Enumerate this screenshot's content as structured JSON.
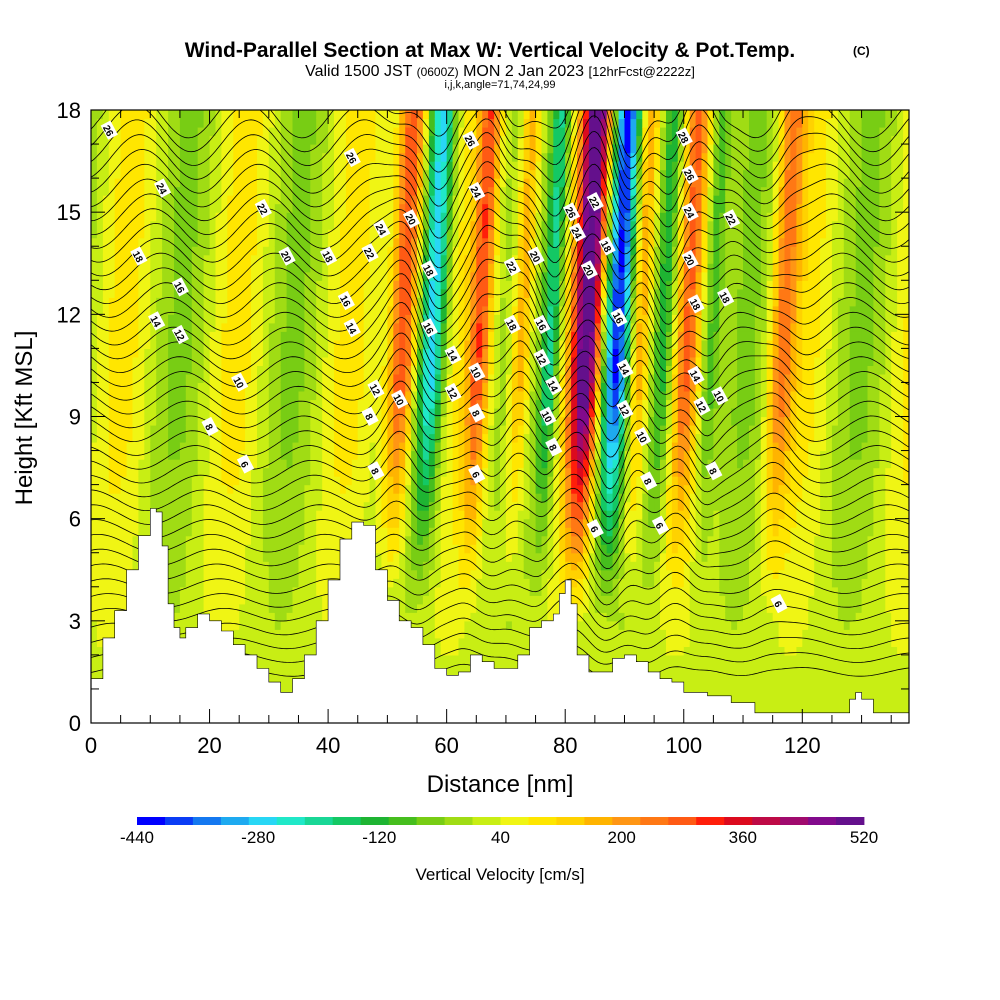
{
  "title": {
    "main": "Wind-Parallel Section at Max W: Vertical Velocity & Pot.Temp.",
    "main_mark": "(C)",
    "valid_prefix": "Valid 1500 JST",
    "valid_utc": "(0600Z)",
    "valid_day": "MON 2 Jan 2023",
    "valid_fcst": "[12hrFcst@2222z]",
    "ijk": "i,j,k,angle=71,74,24,99"
  },
  "chart_data": {
    "type": "heatmap",
    "title": "Wind-Parallel Section at Max W: Vertical Velocity & Pot.Temp.",
    "xlabel": "Distance [nm]",
    "ylabel": "Height [Kft MSL]",
    "xlim": [
      0,
      138
    ],
    "ylim": [
      0,
      18
    ],
    "x_ticks": [
      "0",
      "20",
      "40",
      "60",
      "80",
      "100",
      "120"
    ],
    "y_ticks": [
      "0",
      "3",
      "6",
      "9",
      "12",
      "15",
      "18"
    ],
    "colorbar": {
      "label": "Vertical Velocity [cm/s]",
      "tick_labels": [
        "-440",
        "-280",
        "-120",
        "40",
        "200",
        "360",
        "520"
      ],
      "colors": [
        "#0000ff",
        "#0a3cf5",
        "#1478f0",
        "#1eaaf0",
        "#28d7f5",
        "#20e8c8",
        "#19d796",
        "#14c864",
        "#1eb432",
        "#46be1e",
        "#78cd14",
        "#a0dc14",
        "#c8ee14",
        "#f0f514",
        "#ffe600",
        "#ffd200",
        "#ffb400",
        "#ff9614",
        "#ff7814",
        "#ff5a14",
        "#ff1e0a",
        "#dc0a1e",
        "#be0a46",
        "#a00a6e",
        "#820a8c",
        "#64108c"
      ]
    },
    "w_features": [
      {
        "x": 52,
        "w": 340,
        "width": 2.4
      },
      {
        "x": 57,
        "w": -290,
        "width": 2.2
      },
      {
        "x": 83,
        "w": 470,
        "width": 2.4
      },
      {
        "x": 88,
        "w": -400,
        "width": 2.2
      },
      {
        "x": 65,
        "w": 230,
        "width": 1.8
      },
      {
        "x": 72,
        "w": 210,
        "width": 1.8
      },
      {
        "x": 77,
        "w": -220,
        "width": 1.6
      },
      {
        "x": 92,
        "w": 220,
        "width": 1.8
      },
      {
        "x": 96,
        "w": -160,
        "width": 1.6
      },
      {
        "x": 100,
        "w": 180,
        "width": 1.8
      },
      {
        "x": 104,
        "w": -140,
        "width": 1.6
      },
      {
        "x": 116,
        "w": 200,
        "width": 2.2
      }
    ],
    "terrain": [
      [
        0,
        1.3
      ],
      [
        2,
        2.5
      ],
      [
        4,
        3.3
      ],
      [
        6,
        4.5
      ],
      [
        8,
        5.5
      ],
      [
        10,
        6.3
      ],
      [
        11,
        6.2
      ],
      [
        12,
        5.2
      ],
      [
        13,
        3.5
      ],
      [
        14,
        2.8
      ],
      [
        15,
        2.5
      ],
      [
        16,
        2.8
      ],
      [
        18,
        3.2
      ],
      [
        20,
        3.0
      ],
      [
        22,
        2.7
      ],
      [
        24,
        2.3
      ],
      [
        26,
        2.0
      ],
      [
        28,
        1.6
      ],
      [
        30,
        1.2
      ],
      [
        32,
        0.9
      ],
      [
        34,
        1.3
      ],
      [
        36,
        2.0
      ],
      [
        38,
        3.0
      ],
      [
        40,
        4.2
      ],
      [
        42,
        5.4
      ],
      [
        44,
        5.9
      ],
      [
        46,
        5.8
      ],
      [
        48,
        4.5
      ],
      [
        50,
        3.6
      ],
      [
        52,
        3.0
      ],
      [
        54,
        2.8
      ],
      [
        56,
        2.3
      ],
      [
        58,
        1.6
      ],
      [
        60,
        1.4
      ],
      [
        62,
        1.5
      ],
      [
        64,
        2.0
      ],
      [
        66,
        1.8
      ],
      [
        68,
        1.6
      ],
      [
        70,
        1.6
      ],
      [
        72,
        2.0
      ],
      [
        74,
        2.8
      ],
      [
        76,
        3.0
      ],
      [
        78,
        3.2
      ],
      [
        79,
        3.8
      ],
      [
        80,
        4.2
      ],
      [
        81,
        3.5
      ],
      [
        82,
        2.0
      ],
      [
        84,
        1.5
      ],
      [
        86,
        1.5
      ],
      [
        88,
        1.9
      ],
      [
        90,
        2.0
      ],
      [
        92,
        1.8
      ],
      [
        94,
        1.5
      ],
      [
        96,
        1.3
      ],
      [
        98,
        1.2
      ],
      [
        100,
        0.9
      ],
      [
        104,
        0.8
      ],
      [
        108,
        0.6
      ],
      [
        112,
        0.3
      ],
      [
        126,
        0.3
      ],
      [
        128,
        0.7
      ],
      [
        129,
        0.9
      ],
      [
        130,
        0.7
      ],
      [
        132,
        0.3
      ],
      [
        138,
        0.3
      ]
    ],
    "theta_labels": [
      {
        "x": 3,
        "y": 17.4,
        "text": "26"
      },
      {
        "x": 12,
        "y": 15.7,
        "text": "24"
      },
      {
        "x": 29,
        "y": 15.1,
        "text": "22"
      },
      {
        "x": 33,
        "y": 13.7,
        "text": "20"
      },
      {
        "x": 8,
        "y": 13.7,
        "text": "18"
      },
      {
        "x": 15,
        "y": 12.8,
        "text": "16"
      },
      {
        "x": 11,
        "y": 11.8,
        "text": "14"
      },
      {
        "x": 15,
        "y": 11.4,
        "text": "12"
      },
      {
        "x": 25,
        "y": 10.0,
        "text": "10"
      },
      {
        "x": 20,
        "y": 8.7,
        "text": "8"
      },
      {
        "x": 26,
        "y": 7.6,
        "text": "6"
      },
      {
        "x": 44,
        "y": 16.6,
        "text": "26"
      },
      {
        "x": 49,
        "y": 14.5,
        "text": "24"
      },
      {
        "x": 47,
        "y": 13.8,
        "text": "22"
      },
      {
        "x": 54,
        "y": 14.8,
        "text": "20"
      },
      {
        "x": 40,
        "y": 13.7,
        "text": "18"
      },
      {
        "x": 43,
        "y": 12.4,
        "text": "16"
      },
      {
        "x": 44,
        "y": 11.6,
        "text": "14"
      },
      {
        "x": 48,
        "y": 9.8,
        "text": "12"
      },
      {
        "x": 47,
        "y": 9.0,
        "text": "8"
      },
      {
        "x": 48,
        "y": 7.4,
        "text": "8"
      },
      {
        "x": 52,
        "y": 9.5,
        "text": "10"
      },
      {
        "x": 64,
        "y": 17.1,
        "text": "26"
      },
      {
        "x": 65,
        "y": 15.6,
        "text": "24"
      },
      {
        "x": 57,
        "y": 13.3,
        "text": "18"
      },
      {
        "x": 57,
        "y": 11.6,
        "text": "16"
      },
      {
        "x": 61,
        "y": 10.8,
        "text": "14"
      },
      {
        "x": 61,
        "y": 9.7,
        "text": "12"
      },
      {
        "x": 65,
        "y": 10.3,
        "text": "10"
      },
      {
        "x": 65,
        "y": 9.1,
        "text": "8"
      },
      {
        "x": 65,
        "y": 7.3,
        "text": "6"
      },
      {
        "x": 71,
        "y": 13.4,
        "text": "22"
      },
      {
        "x": 75,
        "y": 13.7,
        "text": "20"
      },
      {
        "x": 71,
        "y": 11.7,
        "text": "18"
      },
      {
        "x": 76,
        "y": 11.7,
        "text": "16"
      },
      {
        "x": 76,
        "y": 10.7,
        "text": "12"
      },
      {
        "x": 78,
        "y": 9.9,
        "text": "14"
      },
      {
        "x": 77,
        "y": 9.0,
        "text": "10"
      },
      {
        "x": 78,
        "y": 8.1,
        "text": "8"
      },
      {
        "x": 81,
        "y": 15.0,
        "text": "26"
      },
      {
        "x": 85,
        "y": 15.3,
        "text": "22"
      },
      {
        "x": 82,
        "y": 14.4,
        "text": "24"
      },
      {
        "x": 87,
        "y": 14.0,
        "text": "18"
      },
      {
        "x": 84,
        "y": 13.3,
        "text": "20"
      },
      {
        "x": 89,
        "y": 11.9,
        "text": "16"
      },
      {
        "x": 90,
        "y": 10.4,
        "text": "14"
      },
      {
        "x": 90,
        "y": 9.2,
        "text": "12"
      },
      {
        "x": 85,
        "y": 5.7,
        "text": "6"
      },
      {
        "x": 100,
        "y": 17.2,
        "text": "28"
      },
      {
        "x": 101,
        "y": 16.1,
        "text": "26"
      },
      {
        "x": 101,
        "y": 15.0,
        "text": "24"
      },
      {
        "x": 108,
        "y": 14.8,
        "text": "22"
      },
      {
        "x": 101,
        "y": 13.6,
        "text": "20"
      },
      {
        "x": 102,
        "y": 12.3,
        "text": "18"
      },
      {
        "x": 107,
        "y": 12.5,
        "text": "18"
      },
      {
        "x": 102,
        "y": 10.2,
        "text": "14"
      },
      {
        "x": 103,
        "y": 9.3,
        "text": "12"
      },
      {
        "x": 106,
        "y": 9.6,
        "text": "10"
      },
      {
        "x": 93,
        "y": 8.4,
        "text": "10"
      },
      {
        "x": 94,
        "y": 7.1,
        "text": "8"
      },
      {
        "x": 105,
        "y": 7.4,
        "text": "8"
      },
      {
        "x": 96,
        "y": 5.8,
        "text": "6"
      },
      {
        "x": 116,
        "y": 3.5,
        "text": "6"
      }
    ]
  }
}
